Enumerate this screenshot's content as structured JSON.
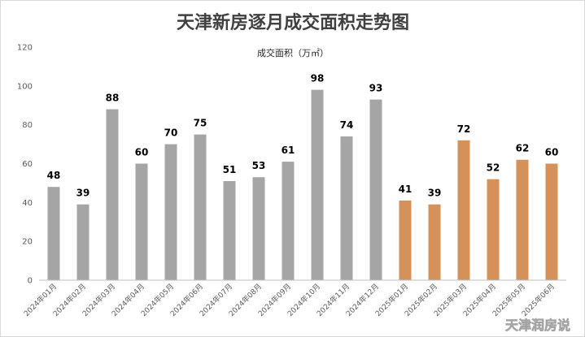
{
  "watermark": "天津润房说",
  "colors": {
    "series_2024": "#a5a5a5",
    "series_2025": "#d4925a",
    "grid": "#d9d9d9",
    "axis": "#bfbfbf"
  },
  "chart_data": {
    "type": "bar",
    "title": "天津新房逐月成交面积走势图",
    "subtitle": "成交面积（万㎡）",
    "xlabel": "",
    "ylabel": "",
    "ylim": [
      0,
      120
    ],
    "yticks": [
      0,
      20,
      40,
      60,
      80,
      100,
      120
    ],
    "grid": false,
    "legend": "none",
    "categories": [
      "2024年01月",
      "2024年02月",
      "2024年03月",
      "2024年04月",
      "2024年05月",
      "2024年06月",
      "2024年07月",
      "2024年08月",
      "2024年09月",
      "2024年10月",
      "2024年11月",
      "2024年12月",
      "2025年01月",
      "2025年02月",
      "2025年03月",
      "2025年04月",
      "2025年05月",
      "2025年06月"
    ],
    "values": [
      48,
      39,
      88,
      60,
      70,
      75,
      51,
      53,
      61,
      98,
      74,
      93,
      41,
      39,
      72,
      52,
      62,
      60
    ],
    "bar_colors": [
      "#a5a5a5",
      "#a5a5a5",
      "#a5a5a5",
      "#a5a5a5",
      "#a5a5a5",
      "#a5a5a5",
      "#a5a5a5",
      "#a5a5a5",
      "#a5a5a5",
      "#a5a5a5",
      "#a5a5a5",
      "#a5a5a5",
      "#d4925a",
      "#d4925a",
      "#d4925a",
      "#d4925a",
      "#d4925a",
      "#d4925a"
    ]
  }
}
